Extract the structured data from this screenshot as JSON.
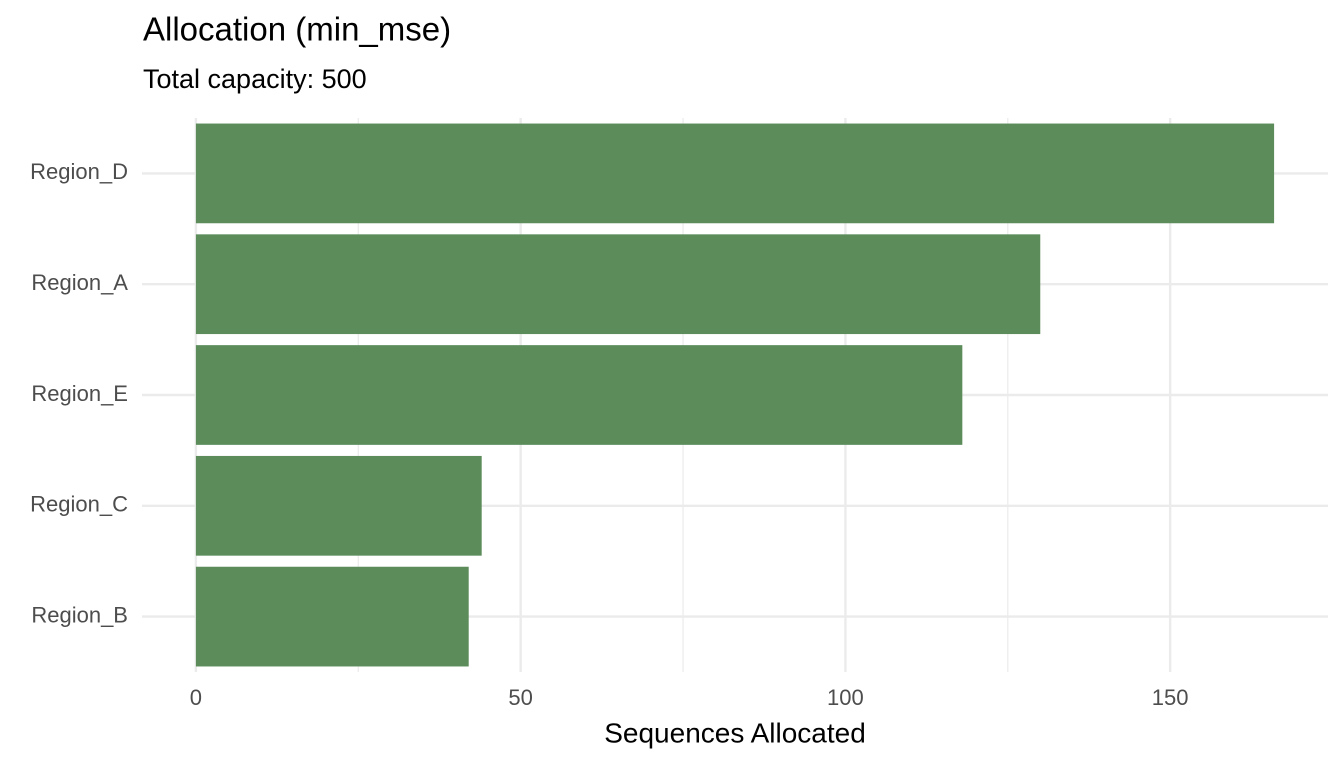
{
  "chart_data": {
    "type": "bar",
    "orientation": "horizontal",
    "title": "Allocation (min_mse)",
    "subtitle": "Total capacity: 500",
    "x_label": "Sequences Allocated",
    "categories": [
      "Region_D",
      "Region_A",
      "Region_E",
      "Region_C",
      "Region_B"
    ],
    "values": [
      166,
      130,
      118,
      44,
      42
    ],
    "color": "#5b8c5a",
    "xlim": [
      -8.3,
      174.3
    ],
    "xticks": [
      0,
      50,
      100,
      150
    ],
    "x_minor_ticks": [
      25,
      75,
      125
    ],
    "grid": true
  }
}
